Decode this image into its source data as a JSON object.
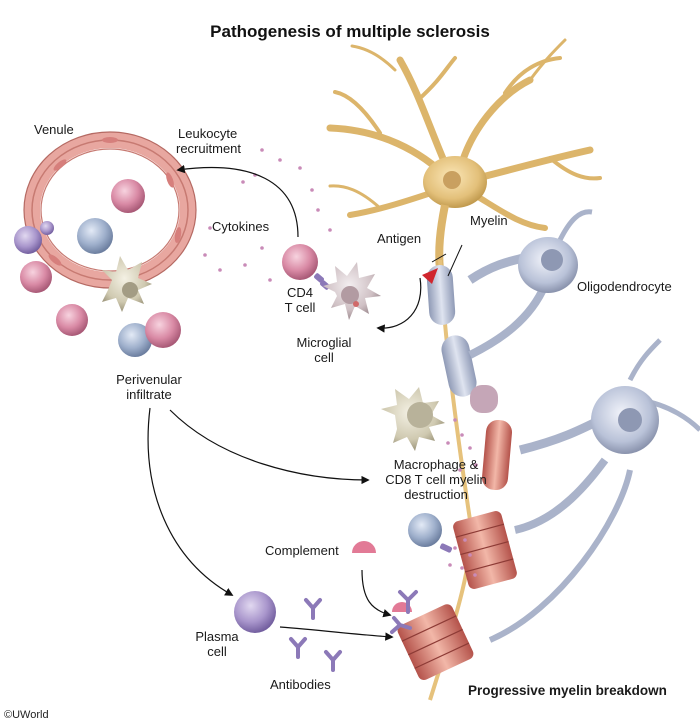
{
  "title": "Pathogenesis of multiple sclerosis",
  "labels": {
    "venule": "Venule",
    "leukocyte_recruitment_1": "Leukocyte",
    "leukocyte_recruitment_2": "recruitment",
    "cytokines": "Cytokines",
    "cd4_1": "CD4",
    "cd4_2": "T cell",
    "microglial_1": "Microglial",
    "microglial_2": "cell",
    "antigen": "Antigen",
    "myelin": "Myelin",
    "oligodendrocyte": "Oligodendrocyte",
    "perivenular_1": "Perivenular",
    "perivenular_2": "infiltrate",
    "macrophage_1": "Macrophage &",
    "macrophage_2": "CD8 T cell myelin",
    "macrophage_3": "destruction",
    "complement": "Complement",
    "plasma_1": "Plasma",
    "plasma_2": "cell",
    "antibodies": "Antibodies",
    "progressive": "Progressive myelin breakdown"
  },
  "copyright": "©UWorld",
  "colors": {
    "pink_cell": "#d98aa5",
    "blue_cell": "#9fb0cc",
    "purple_cell": "#9b86c0",
    "vessel": "#e8a7a0",
    "neuron": "#e3c07a",
    "myelin": "#b7c2d8",
    "damaged_myelin": "#d9776a",
    "antibody": "#8c79b8",
    "arrow": "#111111"
  }
}
